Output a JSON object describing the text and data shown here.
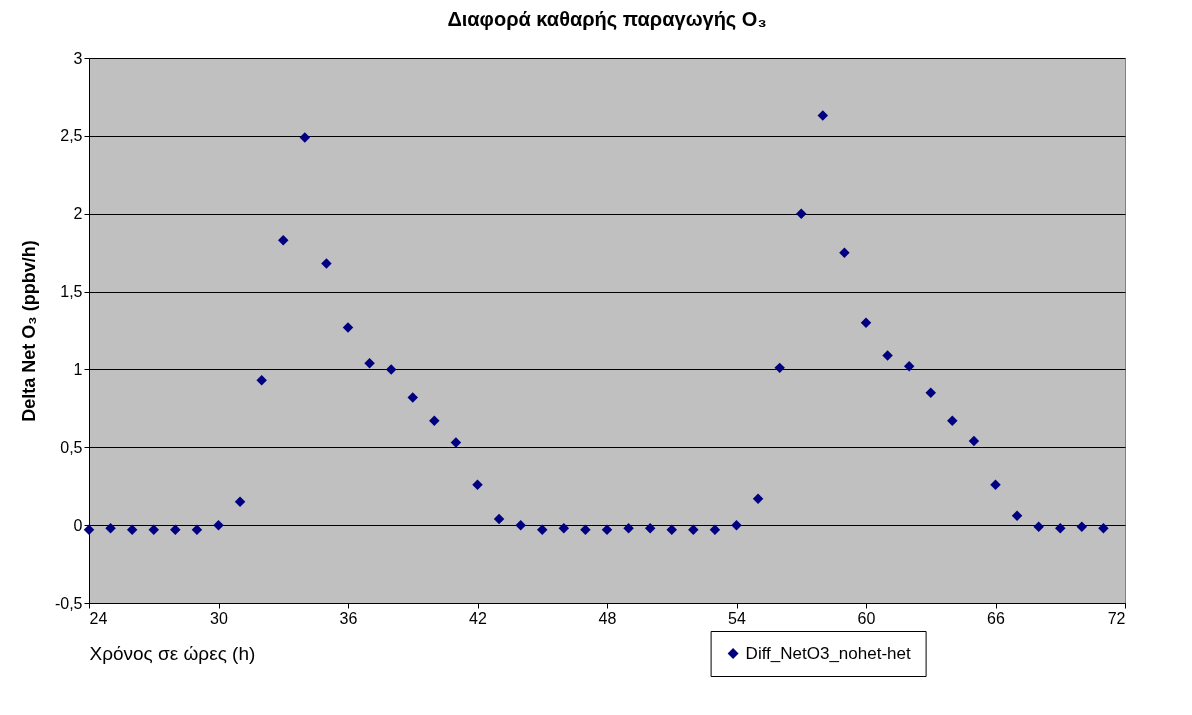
{
  "chart_data": {
    "type": "scatter",
    "title": "Διαφορά καθαρής παραγωγής O₃",
    "xlabel": "Χρόνος  σε ώρες (h)",
    "ylabel": "Delta Net O₃ (ppbv/h)",
    "x": [
      24,
      25,
      26,
      27,
      28,
      29,
      30,
      31,
      32,
      33,
      34,
      35,
      36,
      37,
      38,
      39,
      40,
      41,
      42,
      43,
      44,
      45,
      46,
      47,
      48,
      49,
      50,
      51,
      52,
      53,
      54,
      55,
      56,
      57,
      58,
      59,
      60,
      61,
      62,
      63,
      64,
      65,
      66,
      67,
      68,
      69,
      70,
      71
    ],
    "series": [
      {
        "name": "Diff_NetO3_nohet-het",
        "color": "#000080",
        "values": [
          -0.03,
          -0.02,
          -0.03,
          -0.03,
          -0.03,
          -0.03,
          0.0,
          0.15,
          0.93,
          1.83,
          2.49,
          1.68,
          1.27,
          1.04,
          1.0,
          0.82,
          0.67,
          0.53,
          0.26,
          0.04,
          0.0,
          -0.03,
          -0.02,
          -0.03,
          -0.03,
          -0.02,
          -0.02,
          -0.03,
          -0.03,
          -0.03,
          0.0,
          0.17,
          1.01,
          2.0,
          2.63,
          1.75,
          1.3,
          1.09,
          1.02,
          0.85,
          0.67,
          0.54,
          0.26,
          0.06,
          -0.01,
          -0.02,
          -0.01,
          -0.02
        ]
      }
    ],
    "xlim": [
      24,
      72
    ],
    "xticks": [
      24,
      30,
      36,
      42,
      48,
      54,
      60,
      66,
      72
    ],
    "ylim": [
      -0.5,
      3
    ],
    "yticks": [
      {
        "value": -0.5,
        "label": "-0,5"
      },
      0,
      {
        "value": 0.5,
        "label": "0,5"
      },
      1,
      {
        "value": 1.5,
        "label": "1,5"
      },
      2,
      {
        "value": 2.5,
        "label": "2,5"
      },
      3
    ],
    "grid": "y",
    "marker": "diamond",
    "legend": "bottom right"
  }
}
